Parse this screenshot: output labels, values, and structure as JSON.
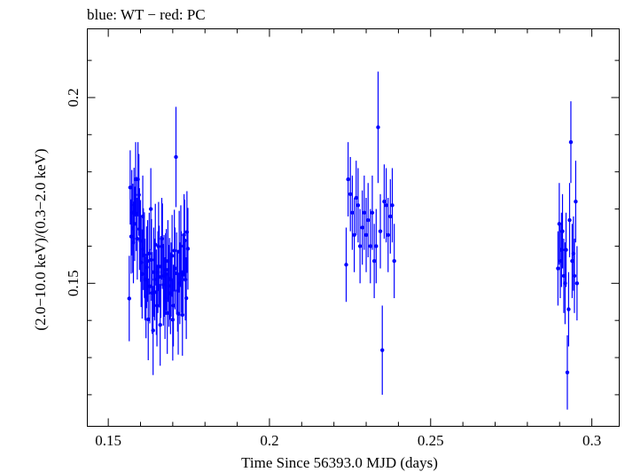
{
  "colors": {
    "series": "#0000ff",
    "axis": "#000000",
    "background": "#ffffff"
  },
  "chart_data": {
    "type": "scatter",
    "title": "blue: WT − red: PC",
    "xlabel": "Time Since 56393.0 MJD (days)",
    "ylabel": "(2.0−10.0 keV)/(0.3−2.0 keV)",
    "xlim": [
      0.1435,
      0.3085
    ],
    "ylim": [
      0.1115,
      0.2185
    ],
    "xticks": [
      {
        "value": 0.15,
        "label": "0.15"
      },
      {
        "value": 0.2,
        "label": "0.2"
      },
      {
        "value": 0.25,
        "label": "0.25"
      },
      {
        "value": 0.3,
        "label": "0.3"
      }
    ],
    "yticks": [
      {
        "value": 0.15,
        "label": "0.15"
      },
      {
        "value": 0.2,
        "label": "0.2"
      }
    ],
    "series": [
      {
        "name": "WT",
        "color": "#0000ff",
        "points": [
          [
            0.1565,
            0.1459,
            0.0115
          ],
          [
            0.1568,
            0.1758,
            0.01
          ],
          [
            0.1571,
            0.1626,
            0.01
          ],
          [
            0.1573,
            0.169,
            0.0115
          ],
          [
            0.1576,
            0.1648,
            0.012
          ],
          [
            0.1578,
            0.161,
            0.011
          ],
          [
            0.158,
            0.1711,
            0.01
          ],
          [
            0.1582,
            0.166,
            0.01
          ],
          [
            0.1585,
            0.178,
            0.01
          ],
          [
            0.1587,
            0.1687,
            0.01
          ],
          [
            0.159,
            0.162,
            0.011
          ],
          [
            0.1592,
            0.178,
            0.01
          ],
          [
            0.1595,
            0.1738,
            0.011
          ],
          [
            0.1597,
            0.1646,
            0.011
          ],
          [
            0.16,
            0.1614,
            0.011
          ],
          [
            0.1602,
            0.1556,
            0.012
          ],
          [
            0.1605,
            0.1525,
            0.012
          ],
          [
            0.1607,
            0.168,
            0.011
          ],
          [
            0.1609,
            0.1592,
            0.011
          ],
          [
            0.1612,
            0.1576,
            0.0115
          ],
          [
            0.1614,
            0.151,
            0.011
          ],
          [
            0.1617,
            0.1462,
            0.011
          ],
          [
            0.1619,
            0.1543,
            0.011
          ],
          [
            0.1622,
            0.156,
            0.011
          ],
          [
            0.1624,
            0.1403,
            0.011
          ],
          [
            0.1627,
            0.158,
            0.011
          ],
          [
            0.1629,
            0.1492,
            0.01
          ],
          [
            0.1632,
            0.17,
            0.011
          ],
          [
            0.1634,
            0.1563,
            0.011
          ],
          [
            0.1636,
            0.1474,
            0.011
          ],
          [
            0.1639,
            0.1373,
            0.012
          ],
          [
            0.1641,
            0.153,
            0.012
          ],
          [
            0.1644,
            0.151,
            0.011
          ],
          [
            0.1646,
            0.1604,
            0.011
          ],
          [
            0.1649,
            0.1476,
            0.0115
          ],
          [
            0.1651,
            0.144,
            0.011
          ],
          [
            0.1654,
            0.153,
            0.011
          ],
          [
            0.1656,
            0.1599,
            0.012
          ],
          [
            0.1658,
            0.1545,
            0.011
          ],
          [
            0.1661,
            0.1388,
            0.011
          ],
          [
            0.1663,
            0.1517,
            0.011
          ],
          [
            0.1666,
            0.162,
            0.011
          ],
          [
            0.1668,
            0.16,
            0.0115
          ],
          [
            0.1671,
            0.1496,
            0.011
          ],
          [
            0.1673,
            0.152,
            0.011
          ],
          [
            0.1676,
            0.146,
            0.011
          ],
          [
            0.1678,
            0.1525,
            0.011
          ],
          [
            0.168,
            0.1536,
            0.011
          ],
          [
            0.1683,
            0.142,
            0.011
          ],
          [
            0.1685,
            0.156,
            0.011
          ],
          [
            0.1688,
            0.1493,
            0.011
          ],
          [
            0.169,
            0.1512,
            0.011
          ],
          [
            0.1693,
            0.1473,
            0.011
          ],
          [
            0.1695,
            0.151,
            0.01
          ],
          [
            0.1698,
            0.1574,
            0.011
          ],
          [
            0.17,
            0.1402,
            0.011
          ],
          [
            0.1702,
            0.144,
            0.011
          ],
          [
            0.1705,
            0.1588,
            0.011
          ],
          [
            0.1707,
            0.154,
            0.011
          ],
          [
            0.171,
            0.184,
            0.0135
          ],
          [
            0.1712,
            0.1527,
            0.011
          ],
          [
            0.1715,
            0.148,
            0.011
          ],
          [
            0.1717,
            0.1418,
            0.011
          ],
          [
            0.172,
            0.1585,
            0.011
          ],
          [
            0.1722,
            0.15,
            0.011
          ],
          [
            0.1725,
            0.16,
            0.011
          ],
          [
            0.1727,
            0.153,
            0.011
          ],
          [
            0.173,
            0.1415,
            0.011
          ],
          [
            0.1732,
            0.1523,
            0.011
          ],
          [
            0.1735,
            0.163,
            0.011
          ],
          [
            0.1737,
            0.1615,
            0.011
          ],
          [
            0.1739,
            0.151,
            0.011
          ],
          [
            0.1742,
            0.146,
            0.011
          ],
          [
            0.1744,
            0.1638,
            0.011
          ],
          [
            0.1747,
            0.1593,
            0.011
          ],
          [
            0.2238,
            0.155,
            0.01
          ],
          [
            0.2244,
            0.178,
            0.01
          ],
          [
            0.2251,
            0.174,
            0.01
          ],
          [
            0.2257,
            0.169,
            0.01
          ],
          [
            0.2263,
            0.163,
            0.01
          ],
          [
            0.2269,
            0.173,
            0.01
          ],
          [
            0.2275,
            0.171,
            0.01
          ],
          [
            0.2281,
            0.16,
            0.01
          ],
          [
            0.2288,
            0.165,
            0.01
          ],
          [
            0.2294,
            0.169,
            0.01
          ],
          [
            0.23,
            0.163,
            0.01
          ],
          [
            0.2306,
            0.167,
            0.01
          ],
          [
            0.2313,
            0.16,
            0.01
          ],
          [
            0.2319,
            0.169,
            0.01
          ],
          [
            0.2325,
            0.156,
            0.01
          ],
          [
            0.2331,
            0.16,
            0.01
          ],
          [
            0.2337,
            0.192,
            0.015
          ],
          [
            0.2344,
            0.164,
            0.01
          ],
          [
            0.235,
            0.132,
            0.012
          ],
          [
            0.2356,
            0.172,
            0.01
          ],
          [
            0.2362,
            0.171,
            0.01
          ],
          [
            0.2368,
            0.163,
            0.01
          ],
          [
            0.2375,
            0.168,
            0.01
          ],
          [
            0.2381,
            0.171,
            0.01
          ],
          [
            0.2387,
            0.156,
            0.01
          ],
          [
            0.2895,
            0.154,
            0.01
          ],
          [
            0.2899,
            0.166,
            0.011
          ],
          [
            0.2902,
            0.156,
            0.01
          ],
          [
            0.2906,
            0.159,
            0.01
          ],
          [
            0.2909,
            0.164,
            0.01
          ],
          [
            0.2913,
            0.152,
            0.01
          ],
          [
            0.2917,
            0.15,
            0.011
          ],
          [
            0.292,
            0.159,
            0.01
          ],
          [
            0.2924,
            0.126,
            0.01
          ],
          [
            0.2928,
            0.143,
            0.01
          ],
          [
            0.2931,
            0.167,
            0.01
          ],
          [
            0.2935,
            0.188,
            0.011
          ],
          [
            0.2939,
            0.156,
            0.01
          ],
          [
            0.2943,
            0.158,
            0.01
          ],
          [
            0.2946,
            0.152,
            0.01
          ],
          [
            0.295,
            0.172,
            0.011
          ],
          [
            0.2954,
            0.15,
            0.01
          ]
        ]
      }
    ]
  }
}
